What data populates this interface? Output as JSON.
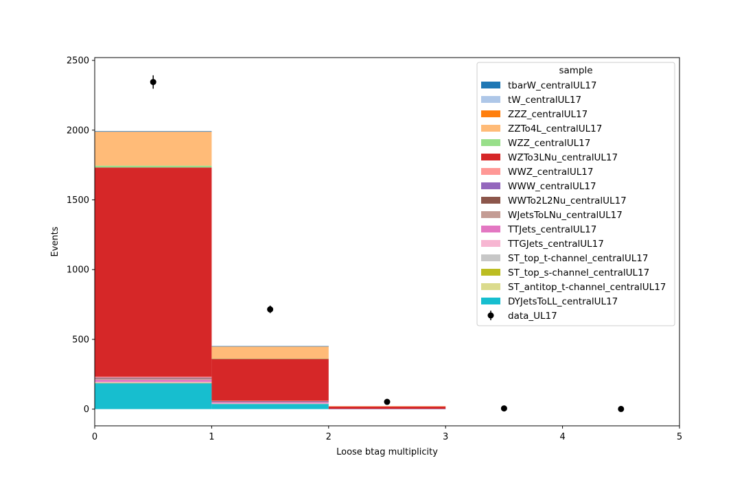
{
  "chart_data": {
    "type": "bar",
    "stacked": true,
    "xlabel": "Loose btag multiplicity",
    "ylabel": "Events",
    "xlim": [
      0,
      5
    ],
    "ylim": [
      -120,
      2520
    ],
    "xticks": [
      0,
      1,
      2,
      3,
      4,
      5
    ],
    "yticks": [
      0,
      500,
      1000,
      1500,
      2000,
      2500
    ],
    "bin_edges": [
      0,
      1,
      2,
      3,
      4,
      5
    ],
    "legend": {
      "title": "sample",
      "placement": "upper right"
    },
    "series": [
      {
        "name": "DYJetsToLL_centralUL17",
        "color": "#17becf",
        "values": [
          185,
          38,
          1,
          0,
          0
        ]
      },
      {
        "name": "ST_antitop_t-channel_centralUL17",
        "color": "#dbdb8d",
        "values": [
          2,
          1,
          0,
          0,
          0
        ]
      },
      {
        "name": "ST_top_s-channel_centralUL17",
        "color": "#bcbd22",
        "values": [
          1,
          0,
          0,
          0,
          0
        ]
      },
      {
        "name": "ST_top_t-channel_centralUL17",
        "color": "#c7c7c7",
        "values": [
          2,
          1,
          0,
          0,
          0
        ]
      },
      {
        "name": "TTGJets_centralUL17",
        "color": "#f7b6d2",
        "values": [
          5,
          2,
          0,
          0,
          0
        ]
      },
      {
        "name": "TTJets_centralUL17",
        "color": "#e377c2",
        "values": [
          15,
          8,
          1,
          0,
          0
        ]
      },
      {
        "name": "WJetsToLNu_centralUL17",
        "color": "#c49c94",
        "values": [
          8,
          3,
          0,
          0,
          0
        ]
      },
      {
        "name": "WWTo2L2Nu_centralUL17",
        "color": "#8c564b",
        "values": [
          4,
          2,
          0,
          0,
          0
        ]
      },
      {
        "name": "WWW_centralUL17",
        "color": "#9467bd",
        "values": [
          4,
          2,
          0,
          0,
          0
        ]
      },
      {
        "name": "WWZ_centralUL17",
        "color": "#ff9896",
        "values": [
          6,
          3,
          0,
          0,
          0
        ]
      },
      {
        "name": "WZTo3LNu_centralUL17",
        "color": "#d62728",
        "values": [
          1500,
          300,
          17,
          0,
          0
        ]
      },
      {
        "name": "WZZ_centralUL17",
        "color": "#98df8a",
        "values": [
          13,
          2,
          0,
          0,
          0
        ]
      },
      {
        "name": "ZZTo4L_centralUL17",
        "color": "#ffbb78",
        "values": [
          240,
          87,
          3,
          0,
          0
        ]
      },
      {
        "name": "ZZZ_centralUL17",
        "color": "#ff7f0e",
        "values": [
          3,
          1,
          0,
          0,
          0
        ]
      },
      {
        "name": "tW_centralUL17",
        "color": "#aec7e8",
        "values": [
          3,
          1,
          0,
          0,
          0
        ]
      },
      {
        "name": "tbarW_centralUL17",
        "color": "#1f77b4",
        "values": [
          3,
          1,
          0,
          0,
          0
        ]
      }
    ],
    "data_points": {
      "name": "data_UL17",
      "color": "#000000",
      "x": [
        0.5,
        1.5,
        2.5,
        3.5,
        4.5
      ],
      "y": [
        2345,
        715,
        52,
        5,
        1
      ],
      "yerr": [
        48,
        27,
        7,
        2,
        1
      ]
    }
  }
}
